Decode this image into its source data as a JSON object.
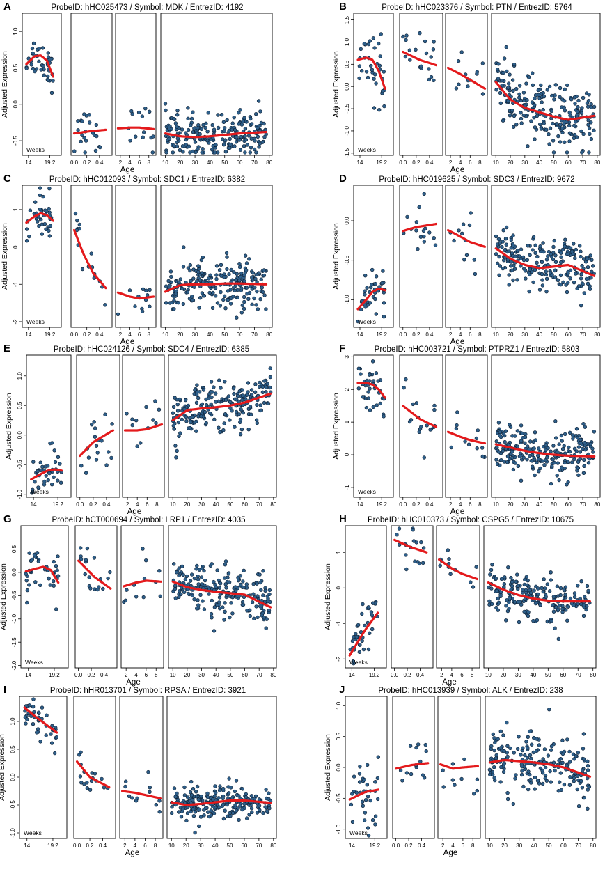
{
  "figure": {
    "axis_label_y": "Adjusted Expression",
    "axis_label_x": "Age",
    "weeks_label": "Weeks",
    "segments": [
      {
        "name": "fetal",
        "ticks": [
          "14",
          "19.2"
        ],
        "range": [
          12.5,
          22
        ]
      },
      {
        "name": "infant",
        "ticks": [
          "0.0",
          "0.2",
          "0.4"
        ],
        "range": [
          -0.05,
          0.6
        ]
      },
      {
        "name": "child",
        "ticks": [
          "2",
          "4",
          "6",
          "8"
        ],
        "range": [
          1,
          9.5
        ]
      },
      {
        "name": "adult",
        "ticks": [
          "10",
          "20",
          "30",
          "40",
          "50",
          "60",
          "70",
          "80"
        ],
        "range": [
          7,
          82
        ]
      }
    ],
    "colors": {
      "points": "#2e5f8a",
      "point_edge": "#0d1f33",
      "fit": "#e41a1c",
      "frame": "#000000"
    }
  },
  "chart_data": [
    {
      "type": "scatter",
      "letter": "A",
      "title": "ProbeID: hHC025473 / Symbol: MDK / EntrezID: 4192",
      "ylim": [
        -0.7,
        1.25
      ],
      "yticks": [
        "-0.5",
        "0.0",
        "0.5",
        "1.0"
      ],
      "ytick_values": [
        -0.5,
        0,
        0.5,
        1.0
      ],
      "fit": {
        "fetal": [
          [
            13.5,
            0.55
          ],
          [
            15.5,
            0.66
          ],
          [
            17,
            0.67
          ],
          [
            18.5,
            0.6
          ],
          [
            20,
            0.38
          ]
        ],
        "infant": [
          [
            0,
            -0.4
          ],
          [
            0.25,
            -0.37
          ],
          [
            0.5,
            -0.35
          ]
        ],
        "child": [
          [
            1.5,
            -0.33
          ],
          [
            4,
            -0.32
          ],
          [
            6,
            -0.32
          ],
          [
            9,
            -0.34
          ]
        ],
        "adult": [
          [
            10,
            -0.4
          ],
          [
            20,
            -0.44
          ],
          [
            30,
            -0.45
          ],
          [
            40,
            -0.44
          ],
          [
            50,
            -0.42
          ],
          [
            60,
            -0.4
          ],
          [
            78,
            -0.38
          ]
        ]
      },
      "noise": 0.15,
      "counts": [
        40,
        22,
        14,
        220
      ]
    },
    {
      "type": "scatter",
      "letter": "B",
      "title": "ProbeID: hHC023376 / Symbol: PTN / EntrezID: 5764",
      "ylim": [
        -1.55,
        1.65
      ],
      "yticks": [
        "-1.5",
        "-1.0",
        "-0.5",
        "0.0",
        "0.5",
        "1.0",
        "1.5"
      ],
      "ytick_values": [
        -1.5,
        -1,
        -0.5,
        0,
        0.5,
        1,
        1.5
      ],
      "fit": {
        "fetal": [
          [
            13.5,
            0.6
          ],
          [
            15.5,
            0.65
          ],
          [
            17,
            0.6
          ],
          [
            18.5,
            0.35
          ],
          [
            20,
            -0.05
          ]
        ],
        "infant": [
          [
            0,
            0.78
          ],
          [
            0.25,
            0.6
          ],
          [
            0.5,
            0.48
          ]
        ],
        "child": [
          [
            1.5,
            0.42
          ],
          [
            4,
            0.28
          ],
          [
            6,
            0.15
          ],
          [
            9,
            -0.05
          ]
        ],
        "adult": [
          [
            10,
            0.1
          ],
          [
            20,
            -0.3
          ],
          [
            30,
            -0.48
          ],
          [
            40,
            -0.58
          ],
          [
            50,
            -0.68
          ],
          [
            60,
            -0.75
          ],
          [
            78,
            -0.66
          ]
        ]
      },
      "noise": 0.35,
      "counts": [
        35,
        20,
        12,
        230
      ]
    },
    {
      "type": "scatter",
      "letter": "C",
      "title": "ProbeID: hHC012093 / Symbol: SDC1 / EntrezID: 6382",
      "ylim": [
        -2.15,
        1.65
      ],
      "yticks": [
        "-2",
        "-1",
        "0",
        "1"
      ],
      "ytick_values": [
        -2,
        -1,
        0,
        1
      ],
      "fit": {
        "fetal": [
          [
            13.5,
            0.65
          ],
          [
            15.5,
            0.82
          ],
          [
            17,
            0.9
          ],
          [
            18.5,
            0.85
          ],
          [
            20,
            0.7
          ]
        ],
        "infant": [
          [
            0,
            0.45
          ],
          [
            0.15,
            -0.2
          ],
          [
            0.3,
            -0.7
          ],
          [
            0.5,
            -1.1
          ]
        ],
        "child": [
          [
            1.5,
            -1.22
          ],
          [
            4,
            -1.33
          ],
          [
            6,
            -1.38
          ],
          [
            9,
            -1.33
          ]
        ],
        "adult": [
          [
            10,
            -1.2
          ],
          [
            20,
            -1.02
          ],
          [
            30,
            -1.0
          ],
          [
            40,
            -1.0
          ],
          [
            50,
            -0.98
          ],
          [
            60,
            -0.98
          ],
          [
            78,
            -1.0
          ]
        ]
      },
      "noise": 0.32,
      "counts": [
        40,
        16,
        12,
        230
      ]
    },
    {
      "type": "scatter",
      "letter": "D",
      "title": "ProbeID: hHC019625 / Symbol: SDC3 / EntrezID: 9672",
      "ylim": [
        -1.35,
        0.45
      ],
      "yticks": [
        "-1.0",
        "-0.5",
        "0.0"
      ],
      "ytick_values": [
        -1,
        -0.5,
        0
      ],
      "fit": {
        "fetal": [
          [
            13.5,
            -1.12
          ],
          [
            15.5,
            -1.0
          ],
          [
            17,
            -0.9
          ],
          [
            18.5,
            -0.86
          ],
          [
            20,
            -0.88
          ]
        ],
        "infant": [
          [
            0,
            -0.13
          ],
          [
            0.2,
            -0.08
          ],
          [
            0.5,
            -0.04
          ]
        ],
        "child": [
          [
            1.5,
            -0.12
          ],
          [
            4,
            -0.2
          ],
          [
            6,
            -0.27
          ],
          [
            9,
            -0.33
          ]
        ],
        "adult": [
          [
            10,
            -0.35
          ],
          [
            20,
            -0.48
          ],
          [
            30,
            -0.56
          ],
          [
            40,
            -0.6
          ],
          [
            50,
            -0.58
          ],
          [
            60,
            -0.56
          ],
          [
            78,
            -0.7
          ]
        ]
      },
      "noise": 0.17,
      "counts": [
        38,
        16,
        12,
        220
      ]
    },
    {
      "type": "scatter",
      "letter": "E",
      "title": "ProbeID: hHC024126 / Symbol: SDC4 / EntrezID: 6385",
      "ylim": [
        -1.05,
        1.35
      ],
      "yticks": [
        "-1.0",
        "-0.5",
        "0.0",
        "0.5",
        "1.0"
      ],
      "ytick_values": [
        -1,
        -0.5,
        0,
        0.5,
        1
      ],
      "fit": {
        "fetal": [
          [
            13.5,
            -0.75
          ],
          [
            15.5,
            -0.66
          ],
          [
            17,
            -0.6
          ],
          [
            18.5,
            -0.58
          ],
          [
            20,
            -0.6
          ]
        ],
        "infant": [
          [
            0,
            -0.35
          ],
          [
            0.2,
            -0.12
          ],
          [
            0.5,
            0.08
          ]
        ],
        "child": [
          [
            1.5,
            0.08
          ],
          [
            4,
            0.08
          ],
          [
            6,
            0.1
          ],
          [
            9,
            0.18
          ]
        ],
        "adult": [
          [
            10,
            0.25
          ],
          [
            20,
            0.42
          ],
          [
            30,
            0.45
          ],
          [
            40,
            0.47
          ],
          [
            50,
            0.5
          ],
          [
            60,
            0.55
          ],
          [
            78,
            0.7
          ]
        ]
      },
      "noise": 0.2,
      "counts": [
        40,
        18,
        12,
        220
      ]
    },
    {
      "type": "scatter",
      "letter": "F",
      "title": "ProbeID: hHC003721 / Symbol: PTPRZ1 / EntrezID: 5803",
      "ylim": [
        -1.3,
        3.05
      ],
      "yticks": [
        "-1",
        "0",
        "1",
        "2",
        "3"
      ],
      "ytick_values": [
        -1,
        0,
        1,
        2,
        3
      ],
      "fit": {
        "fetal": [
          [
            13.5,
            2.2
          ],
          [
            15.5,
            2.2
          ],
          [
            17,
            2.15
          ],
          [
            18.5,
            2.0
          ],
          [
            20,
            1.75
          ]
        ],
        "infant": [
          [
            0,
            1.5
          ],
          [
            0.25,
            1.1
          ],
          [
            0.5,
            0.85
          ]
        ],
        "child": [
          [
            1.5,
            0.7
          ],
          [
            4,
            0.55
          ],
          [
            6,
            0.45
          ],
          [
            9,
            0.35
          ]
        ],
        "adult": [
          [
            10,
            0.32
          ],
          [
            20,
            0.22
          ],
          [
            30,
            0.12
          ],
          [
            40,
            0.05
          ],
          [
            50,
            0.0
          ],
          [
            60,
            -0.03
          ],
          [
            78,
            -0.05
          ]
        ]
      },
      "noise": 0.38,
      "counts": [
        38,
        18,
        12,
        230
      ]
    },
    {
      "type": "scatter",
      "letter": "G",
      "title": "ProbeID: hCT000694 / Symbol: LRP1 / EntrezID: 4035",
      "ylim": [
        -2.05,
        1.0
      ],
      "yticks": [
        "-2.0",
        "-1.5",
        "-1.0",
        "-0.5",
        "0.0",
        "0.5"
      ],
      "ytick_values": [
        -2,
        -1.5,
        -1,
        -0.5,
        0,
        0.5
      ],
      "fit": {
        "fetal": [
          [
            13.5,
            0.02
          ],
          [
            15.5,
            0.08
          ],
          [
            17,
            0.12
          ],
          [
            18.5,
            0.05
          ],
          [
            20,
            -0.22
          ]
        ],
        "infant": [
          [
            0,
            0.25
          ],
          [
            0.25,
            -0.1
          ],
          [
            0.5,
            -0.35
          ]
        ],
        "child": [
          [
            1.5,
            -0.3
          ],
          [
            4,
            -0.22
          ],
          [
            6,
            -0.18
          ],
          [
            9,
            -0.2
          ]
        ],
        "adult": [
          [
            10,
            -0.2
          ],
          [
            20,
            -0.32
          ],
          [
            30,
            -0.38
          ],
          [
            40,
            -0.42
          ],
          [
            50,
            -0.45
          ],
          [
            60,
            -0.48
          ],
          [
            78,
            -0.75
          ]
        ]
      },
      "noise": 0.28,
      "counts": [
        40,
        18,
        12,
        220
      ]
    },
    {
      "type": "scatter",
      "letter": "H",
      "title": "ProbeID: hHC010373 / Symbol: CSPG5 / EntrezID: 10675",
      "ylim": [
        -2.25,
        1.75
      ],
      "yticks": [
        "-2",
        "-1",
        "0",
        "1"
      ],
      "ytick_values": [
        -2,
        -1,
        0,
        1
      ],
      "fit": {
        "fetal": [
          [
            13.5,
            -1.9
          ],
          [
            15.5,
            -1.5
          ],
          [
            17,
            -1.2
          ],
          [
            18.5,
            -0.95
          ],
          [
            20,
            -0.7
          ]
        ],
        "infant": [
          [
            0,
            1.35
          ],
          [
            0.25,
            1.15
          ],
          [
            0.5,
            1.0
          ]
        ],
        "child": [
          [
            1.5,
            0.8
          ],
          [
            4,
            0.55
          ],
          [
            6,
            0.4
          ],
          [
            9,
            0.25
          ]
        ],
        "adult": [
          [
            10,
            0.15
          ],
          [
            20,
            -0.05
          ],
          [
            30,
            -0.2
          ],
          [
            40,
            -0.3
          ],
          [
            50,
            -0.36
          ],
          [
            60,
            -0.38
          ],
          [
            78,
            -0.38
          ]
        ]
      },
      "noise": 0.32,
      "counts": [
        38,
        18,
        12,
        200
      ]
    },
    {
      "type": "scatter",
      "letter": "I",
      "title": "ProbeID: hHR013701 / Symbol: RPSA / EntrezID: 3921",
      "ylim": [
        -1.1,
        1.45
      ],
      "yticks": [
        "-1.0",
        "-0.5",
        "0.0",
        "0.5",
        "1.0"
      ],
      "ytick_values": [
        -1,
        -0.5,
        0,
        0.5,
        1
      ],
      "fit": {
        "fetal": [
          [
            13.5,
            1.25
          ],
          [
            15.5,
            1.1
          ],
          [
            17,
            1.0
          ],
          [
            18.5,
            0.9
          ],
          [
            20,
            0.8
          ]
        ],
        "infant": [
          [
            0,
            0.28
          ],
          [
            0.2,
            0.0
          ],
          [
            0.5,
            -0.18
          ]
        ],
        "child": [
          [
            1.5,
            -0.25
          ],
          [
            4,
            -0.28
          ],
          [
            6,
            -0.32
          ],
          [
            9,
            -0.38
          ]
        ],
        "adult": [
          [
            10,
            -0.45
          ],
          [
            20,
            -0.5
          ],
          [
            30,
            -0.48
          ],
          [
            40,
            -0.45
          ],
          [
            50,
            -0.42
          ],
          [
            60,
            -0.42
          ],
          [
            78,
            -0.46
          ]
        ]
      },
      "noise": 0.15,
      "counts": [
        40,
        18,
        12,
        230
      ]
    },
    {
      "type": "scatter",
      "letter": "J",
      "title": "ProbeID: hHC013939 / Symbol: ALK / EntrezID: 238",
      "ylim": [
        -1.15,
        1.15
      ],
      "yticks": [
        "-1.0",
        "-0.5",
        "0.0",
        "0.5",
        "1.0"
      ],
      "ytick_values": [
        -1,
        -0.5,
        0,
        0.5,
        1
      ],
      "fit": {
        "fetal": [
          [
            13.5,
            -0.52
          ],
          [
            15.5,
            -0.45
          ],
          [
            17,
            -0.4
          ],
          [
            18.5,
            -0.38
          ],
          [
            20,
            -0.36
          ]
        ],
        "infant": [
          [
            0,
            -0.02
          ],
          [
            0.25,
            0.04
          ],
          [
            0.5,
            0.07
          ]
        ],
        "child": [
          [
            1.5,
            0.05
          ],
          [
            4,
            -0.02
          ],
          [
            6,
            0.0
          ],
          [
            9,
            0.02
          ]
        ],
        "adult": [
          [
            10,
            0.08
          ],
          [
            20,
            0.12
          ],
          [
            30,
            0.1
          ],
          [
            40,
            0.08
          ],
          [
            50,
            0.05
          ],
          [
            60,
            0.0
          ],
          [
            78,
            -0.15
          ]
        ]
      },
      "noise": 0.25,
      "counts": [
        36,
        14,
        10,
        200
      ]
    }
  ]
}
